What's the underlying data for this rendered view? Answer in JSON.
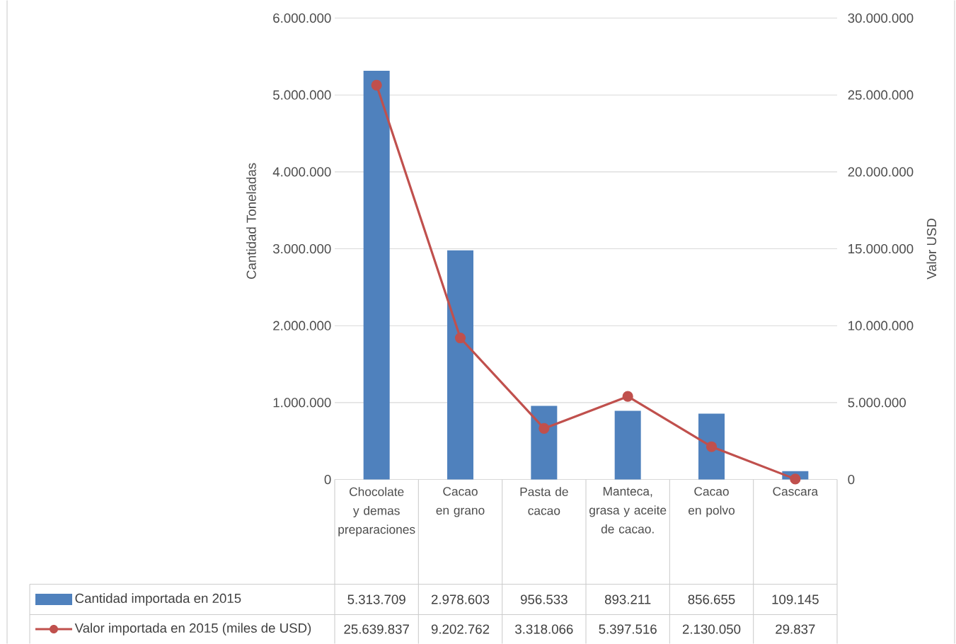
{
  "chart_data": {
    "type": "bar",
    "ylabel": "Cantidad Toneladas",
    "y2label": "Valor USD",
    "categories": [
      "Chocolate y demas preparaciones",
      "Cacao en grano",
      "Pasta de cacao",
      "Manteca, grasa y aceite de cacao.",
      "Cacao en polvo",
      "Cascara"
    ],
    "series": [
      {
        "name": "Cantidad importada en 2015",
        "color": "#4f81bd",
        "values": [
          5313709,
          2978603,
          956533,
          893211,
          856655,
          109145
        ],
        "value_labels": [
          "5.313.709",
          "2.978.603",
          "956.533",
          "893.211",
          "856.655",
          "109.145"
        ]
      },
      {
        "name": "Valor importada en 2015 (miles de USD)",
        "type": "line",
        "axis": "y2",
        "color": "#c0504d",
        "marker": "circle",
        "values": [
          25639837,
          9202762,
          3318066,
          5397516,
          2130050,
          29837
        ],
        "value_labels": [
          "25.639.837",
          "9.202.762",
          "3.318.066",
          "5.397.516",
          "2.130.050",
          "29.837"
        ]
      }
    ],
    "ylim": [
      0,
      6000000
    ],
    "yticks": [
      0,
      {
        "value": 1000000,
        "label": "1.000.000"
      },
      {
        "value": 2000000,
        "label": "2.000.000"
      },
      {
        "value": 3000000,
        "label": "3.000.000"
      },
      {
        "value": 4000000,
        "label": "4.000.000"
      },
      {
        "value": 5000000,
        "label": "5.000.000"
      },
      {
        "value": 6000000,
        "label": "6.000.000"
      }
    ],
    "y2lim": [
      0,
      30000000
    ],
    "y2ticks": [
      0,
      {
        "value": 5000000,
        "label": "5.000.000"
      },
      {
        "value": 10000000,
        "label": "10.000.000"
      },
      {
        "value": 15000000,
        "label": "15.000.000"
      },
      {
        "value": 20000000,
        "label": "20.000.000"
      },
      {
        "value": 25000000,
        "label": "25.000.000"
      },
      {
        "value": 30000000,
        "label": "30.000.000"
      }
    ],
    "grid": "y",
    "legend": "bottom"
  }
}
